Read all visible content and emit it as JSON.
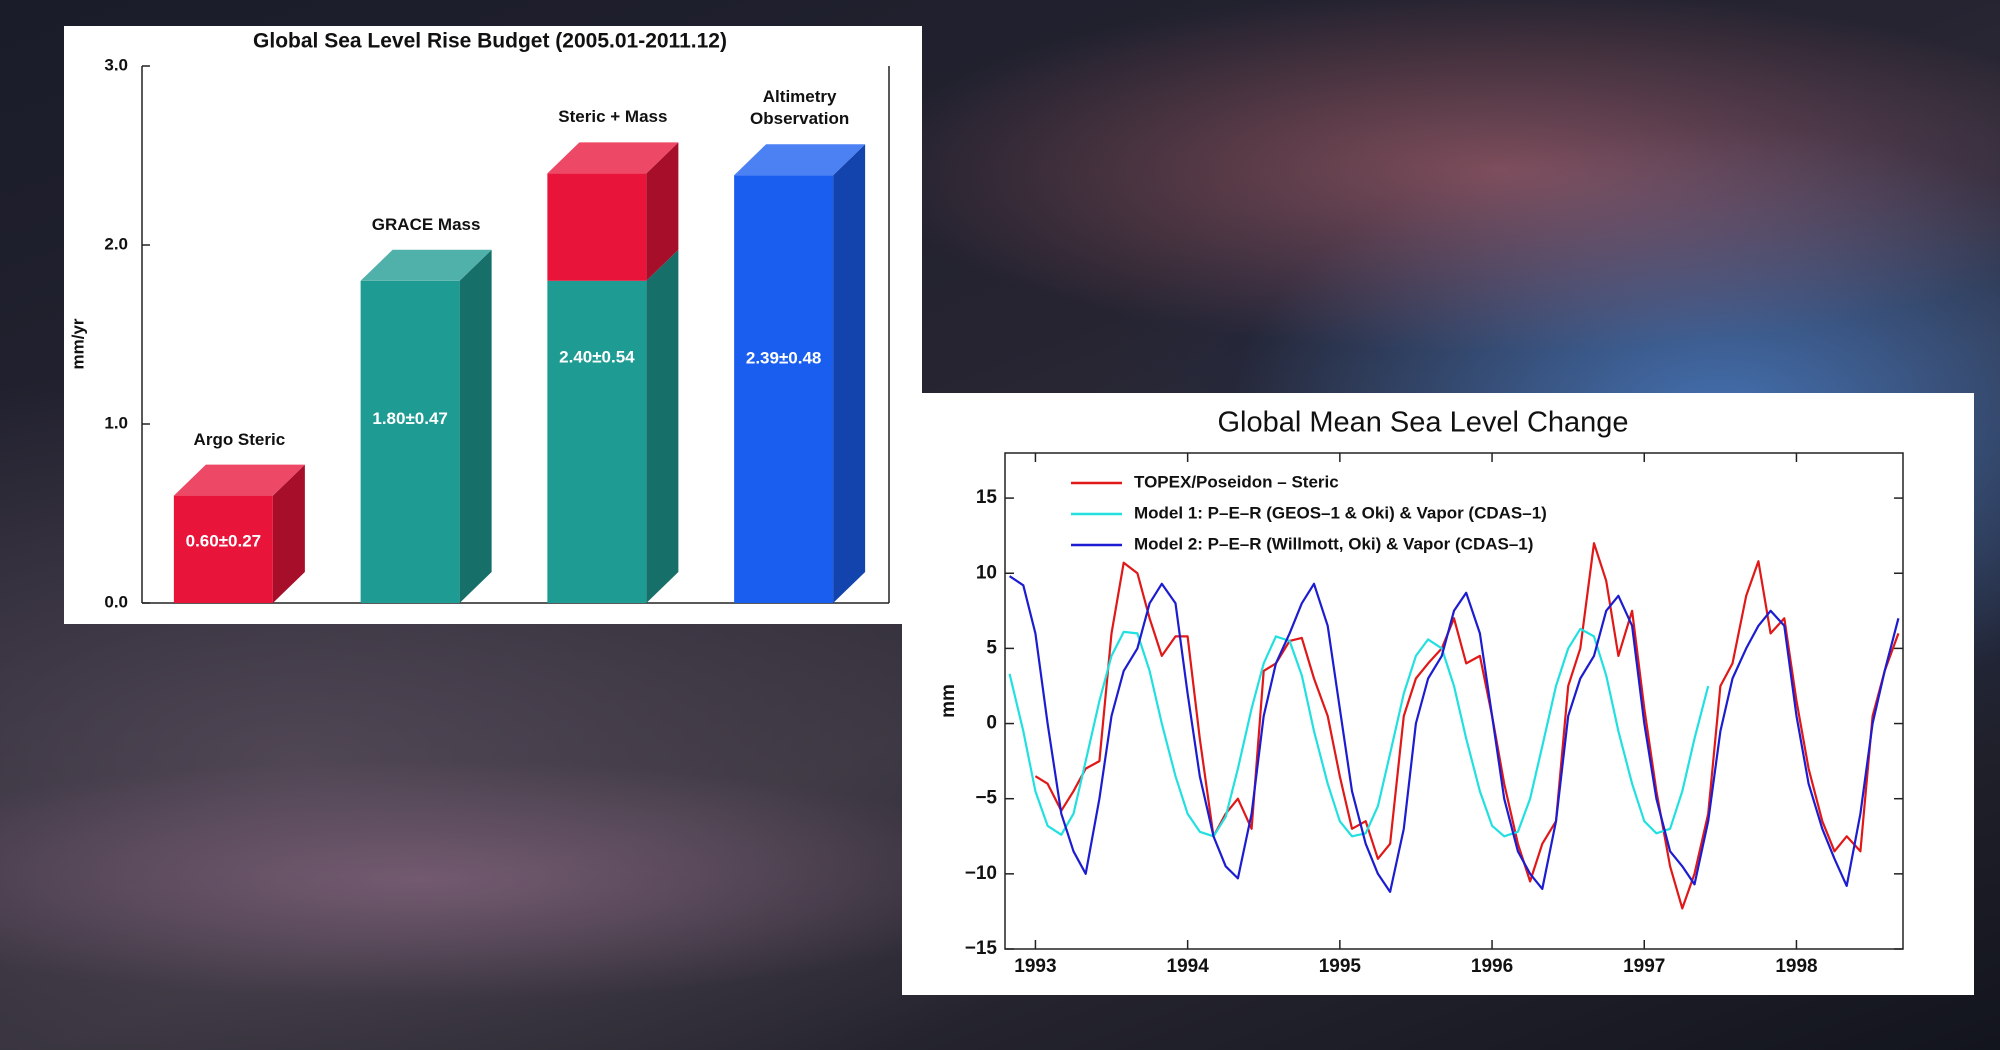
{
  "chart_data": [
    {
      "type": "bar",
      "title": "Global Sea Level Rise Budget (2005.01-2011.12)",
      "ylabel": "mm/yr",
      "categories": [
        "Argo Steric",
        "GRACE Mass",
        "Steric + Mass",
        "Altimetry Observation"
      ],
      "values": [
        0.6,
        1.8,
        2.4,
        2.39
      ],
      "value_labels": [
        "0.60±0.27",
        "1.80±0.47",
        "2.40±0.54",
        "2.39±0.48"
      ],
      "stacked": true,
      "series": [
        {
          "color": "#1e9b92",
          "values": [
            null,
            1.8,
            1.8,
            null
          ]
        },
        {
          "color": "#e8143a",
          "values": [
            0.6,
            null,
            0.6,
            null
          ]
        },
        {
          "color": "#1a5ef0",
          "values": [
            null,
            null,
            null,
            2.39
          ]
        }
      ],
      "ylim": [
        0,
        3
      ],
      "yticks": [
        {
          "value": 0,
          "label": "0.0"
        },
        {
          "value": 1,
          "label": "1.0"
        },
        {
          "value": 2,
          "label": "2.0"
        },
        {
          "value": 3,
          "label": "3.0"
        }
      ]
    },
    {
      "type": "line",
      "title": "Global Mean Sea Level Change",
      "ylabel": "mm",
      "xlim": [
        1992.8,
        1998.7
      ],
      "xticks": [
        1993,
        1994,
        1995,
        1996,
        1997,
        1998
      ],
      "ylim": [
        -15,
        18
      ],
      "yticks": [
        {
          "value": -15,
          "label": "−15"
        },
        {
          "value": -10,
          "label": "−10"
        },
        {
          "value": -5,
          "label": "−5"
        },
        0,
        5,
        10,
        15
      ],
      "series": [
        {
          "name": "TOPEX/Poseidon – Steric",
          "color": "#e01818",
          "x": [
            1993.0,
            1993.08,
            1993.17,
            1993.25,
            1993.33,
            1993.42,
            1993.5,
            1993.58,
            1993.67,
            1993.75,
            1993.83,
            1993.92,
            1994.0,
            1994.08,
            1994.17,
            1994.25,
            1994.33,
            1994.42,
            1994.5,
            1994.58,
            1994.67,
            1994.75,
            1994.83,
            1994.92,
            1995.0,
            1995.08,
            1995.17,
            1995.25,
            1995.33,
            1995.42,
            1995.5,
            1995.58,
            1995.67,
            1995.75,
            1995.83,
            1995.92,
            1996.0,
            1996.08,
            1996.17,
            1996.25,
            1996.33,
            1996.42,
            1996.5,
            1996.58,
            1996.67,
            1996.75,
            1996.83,
            1996.92,
            1997.0,
            1997.08,
            1997.17,
            1997.25,
            1997.33,
            1997.42,
            1997.5,
            1997.58,
            1997.67,
            1997.75,
            1997.83,
            1997.92,
            1998.0,
            1998.08,
            1998.17,
            1998.25,
            1998.33,
            1998.42,
            1998.5,
            1998.58,
            1998.67
          ],
          "values": [
            -3.5,
            -4.0,
            -5.8,
            -4.5,
            -3.0,
            -2.5,
            6.0,
            10.7,
            10.0,
            7.0,
            4.5,
            5.8,
            5.8,
            -1.0,
            -7.5,
            -6.0,
            -5.0,
            -7.0,
            3.5,
            4.0,
            5.5,
            5.7,
            3.0,
            0.5,
            -3.5,
            -7.0,
            -6.5,
            -9.0,
            -8.0,
            0.5,
            3.0,
            4.0,
            5.0,
            7.0,
            4.0,
            4.5,
            0.5,
            -4.0,
            -8.0,
            -10.5,
            -8.0,
            -6.5,
            2.5,
            5.0,
            12.0,
            9.5,
            4.5,
            7.5,
            1.0,
            -4.5,
            -9.5,
            -12.3,
            -10.0,
            -6.0,
            2.5,
            4.0,
            8.5,
            10.8,
            6.0,
            7.0,
            1.5,
            -3.0,
            -6.5,
            -8.5,
            -7.5,
            -8.5,
            0.5,
            3.5,
            6.0
          ]
        },
        {
          "name": "Model 1: P–E–R (GEOS–1 & Oki) & Vapor (CDAS–1)",
          "color": "#22e0e0",
          "x": [
            1992.83,
            1992.92,
            1993.0,
            1993.08,
            1993.17,
            1993.25,
            1993.33,
            1993.42,
            1993.5,
            1993.58,
            1993.67,
            1993.75,
            1993.83,
            1993.92,
            1994.0,
            1994.08,
            1994.17,
            1994.25,
            1994.33,
            1994.42,
            1994.5,
            1994.58,
            1994.67,
            1994.75,
            1994.83,
            1994.92,
            1995.0,
            1995.08,
            1995.17,
            1995.25,
            1995.33,
            1995.42,
            1995.5,
            1995.58,
            1995.67,
            1995.75,
            1995.83,
            1995.92,
            1996.0,
            1996.08,
            1996.17,
            1996.25,
            1996.33,
            1996.42,
            1996.5,
            1996.58,
            1996.67,
            1996.75,
            1996.83,
            1996.92,
            1997.0,
            1997.08,
            1997.17,
            1997.25,
            1997.33,
            1997.42
          ],
          "values": [
            3.3,
            -0.5,
            -4.5,
            -6.8,
            -7.4,
            -6.0,
            -2.5,
            1.5,
            4.5,
            6.1,
            6.0,
            3.5,
            0.0,
            -3.5,
            -6.0,
            -7.2,
            -7.5,
            -6.2,
            -3.0,
            1.0,
            4.0,
            5.8,
            5.5,
            3.2,
            -0.5,
            -4.0,
            -6.5,
            -7.5,
            -7.3,
            -5.5,
            -2.0,
            2.0,
            4.5,
            5.6,
            5.0,
            2.5,
            -1.0,
            -4.5,
            -6.8,
            -7.5,
            -7.2,
            -5.0,
            -1.5,
            2.5,
            5.0,
            6.3,
            5.8,
            3.2,
            -0.5,
            -4.0,
            -6.5,
            -7.3,
            -7.0,
            -4.5,
            -1.0,
            2.5
          ]
        },
        {
          "name": "Model 2: P–E–R (Willmott, Oki) & Vapor (CDAS–1)",
          "color": "#1c1cd0",
          "x": [
            1992.83,
            1992.92,
            1993.0,
            1993.08,
            1993.17,
            1993.25,
            1993.33,
            1993.42,
            1993.5,
            1993.58,
            1993.67,
            1993.75,
            1993.83,
            1993.92,
            1994.0,
            1994.08,
            1994.17,
            1994.25,
            1994.33,
            1994.42,
            1994.5,
            1994.58,
            1994.67,
            1994.75,
            1994.83,
            1994.92,
            1995.0,
            1995.08,
            1995.17,
            1995.25,
            1995.33,
            1995.42,
            1995.5,
            1995.58,
            1995.67,
            1995.75,
            1995.83,
            1995.92,
            1996.0,
            1996.08,
            1996.17,
            1996.25,
            1996.33,
            1996.42,
            1996.5,
            1996.58,
            1996.67,
            1996.75,
            1996.83,
            1996.92,
            1997.0,
            1997.08,
            1997.17,
            1997.25,
            1997.33,
            1997.42,
            1997.5,
            1997.58,
            1997.67,
            1997.75,
            1997.83,
            1997.92,
            1998.0,
            1998.08,
            1998.17,
            1998.25,
            1998.33,
            1998.42,
            1998.5,
            1998.58,
            1998.67
          ],
          "values": [
            9.8,
            9.2,
            6.0,
            0.0,
            -6.0,
            -8.5,
            -10.0,
            -5.0,
            0.5,
            3.5,
            5.0,
            8.0,
            9.3,
            8.0,
            2.0,
            -3.5,
            -7.5,
            -9.5,
            -10.3,
            -6.0,
            0.5,
            4.0,
            6.0,
            8.0,
            9.3,
            6.5,
            1.0,
            -4.5,
            -8.0,
            -10.0,
            -11.2,
            -7.0,
            0.0,
            3.0,
            4.5,
            7.5,
            8.7,
            6.0,
            0.5,
            -5.0,
            -8.5,
            -10.0,
            -11.0,
            -6.5,
            0.5,
            3.0,
            4.5,
            7.5,
            8.5,
            6.5,
            0.0,
            -5.0,
            -8.5,
            -9.5,
            -10.7,
            -6.5,
            -0.5,
            3.0,
            5.0,
            6.5,
            7.5,
            6.5,
            0.5,
            -4.0,
            -7.0,
            -9.0,
            -10.8,
            -6.0,
            0.0,
            3.5,
            7.0
          ]
        }
      ]
    }
  ]
}
